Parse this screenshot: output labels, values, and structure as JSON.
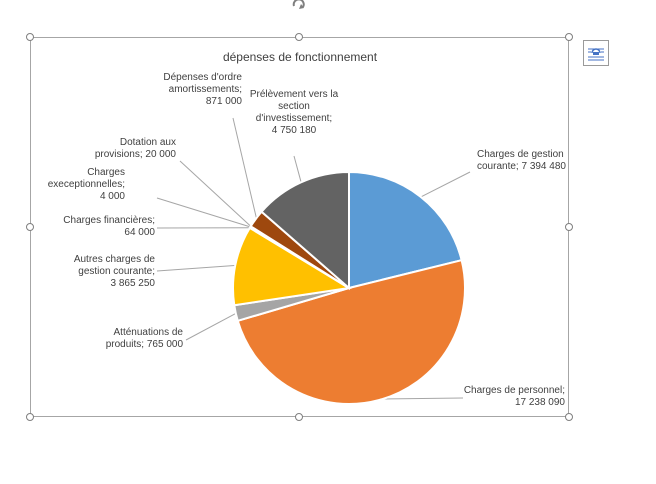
{
  "chart_data": {
    "type": "pie",
    "title": "dépenses de fonctionnement",
    "categories": [
      "Charges de gestion courante",
      "Charges de personnel",
      "Atténuations de produits",
      "Autres charges de gestion courante",
      "Charges financières",
      "Charges execeptionnelles",
      "Dotation aux provisions",
      "Dépenses d'ordre amortissements",
      "Prélèvement vers la section d'investissement"
    ],
    "values": [
      7394480,
      17238090,
      765000,
      3865250,
      64000,
      4000,
      20000,
      871000,
      4750180
    ],
    "colors": [
      "#5b9bd5",
      "#ed7d31",
      "#a5a5a5",
      "#ffc000",
      "#4472c4",
      "#70ad47",
      "#264478",
      "#9e480e",
      "#636363"
    ],
    "labels": [
      [
        "Charges de gestion",
        "courante; 7 394 480"
      ],
      [
        "Charges de personnel;",
        "17 238 090"
      ],
      [
        "Atténuations de",
        "produits; 765 000"
      ],
      [
        "Autres charges de",
        "gestion courante;",
        "3 865 250"
      ],
      [
        "Charges financières;",
        "64 000"
      ],
      [
        "Charges",
        "execeptionnelles;",
        "4 000"
      ],
      [
        "Dotation aux",
        "provisions; 20 000"
      ],
      [
        "Dépenses d'ordre",
        "amortissements;",
        "871 000"
      ],
      [
        "Prélèvement vers la",
        "section",
        "d'investissement;",
        "4 750 180"
      ]
    ],
    "legend": "none",
    "start_angle_deg": 0,
    "direction": "clockwise"
  }
}
